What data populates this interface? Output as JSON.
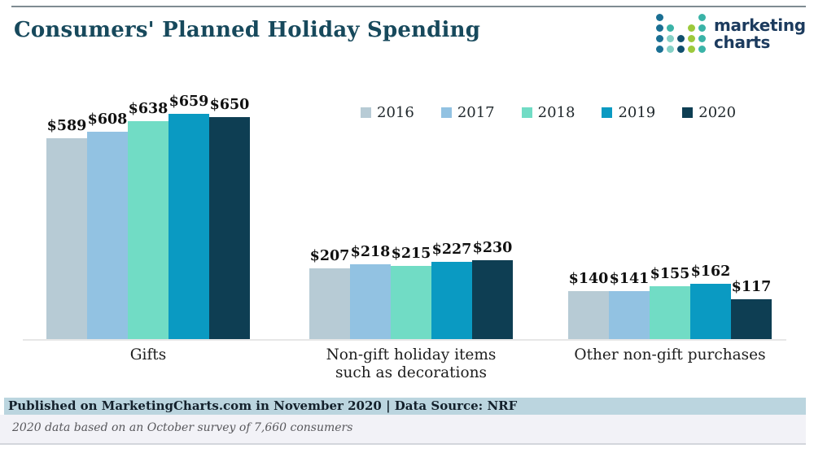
{
  "header": {
    "title": "Consumers' Planned Holiday Spending",
    "logo": {
      "line1": "marketing",
      "line2": "charts",
      "dot_colors": {
        "b": "#1a6f93",
        "n": "#10506e",
        "t": "#3ab3a7",
        "l": "#85d1c6",
        "g": "#9cc93c"
      },
      "dot_grid": [
        [
          "b",
          "",
          "",
          "",
          "t"
        ],
        [
          "b",
          "t",
          "",
          "g",
          "t"
        ],
        [
          "b",
          "l",
          "n",
          "g",
          "t"
        ],
        [
          "b",
          "l",
          "n",
          "g",
          "t"
        ]
      ]
    }
  },
  "chart_data": {
    "type": "bar",
    "title": "Consumers' Planned Holiday Spending",
    "categories": [
      "Gifts",
      "Non-gift holiday items\nsuch as decorations",
      "Other non-gift purchases"
    ],
    "series": [
      {
        "name": "2016",
        "color": "#b7cbd5",
        "values": [
          589,
          207,
          140
        ]
      },
      {
        "name": "2017",
        "color": "#92c2e2",
        "values": [
          608,
          218,
          141
        ]
      },
      {
        "name": "2018",
        "color": "#71dcc5",
        "values": [
          638,
          215,
          155
        ]
      },
      {
        "name": "2019",
        "color": "#0a9ac2",
        "values": [
          659,
          227,
          162
        ]
      },
      {
        "name": "2020",
        "color": "#0e3e53",
        "values": [
          650,
          230,
          117
        ]
      }
    ],
    "value_prefix": "$",
    "value_labels": true,
    "legend_position": "top-right",
    "xlabel": "",
    "ylabel": "",
    "ylim": [
      0,
      700
    ],
    "grid": false
  },
  "footer": {
    "published": "Published on MarketingCharts.com in November 2020 | Data Source: NRF",
    "note": "2020 data based on an October survey of 7,660 consumers"
  }
}
